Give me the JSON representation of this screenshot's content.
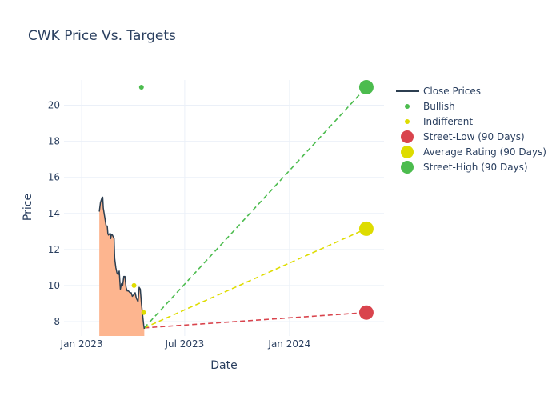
{
  "chart_data": {
    "type": "line",
    "title": "CWK Price Vs. Targets",
    "xlabel": "Date",
    "ylabel": "Price",
    "x_range": [
      "2022-12-01",
      "2024-06-15"
    ],
    "ylim": [
      7.2,
      21.4
    ],
    "x_ticks": [
      {
        "date": "2023-01-01",
        "label": "Jan 2023"
      },
      {
        "date": "2023-07-01",
        "label": "Jul 2023"
      },
      {
        "date": "2024-01-01",
        "label": "Jan 2024"
      }
    ],
    "y_ticks": [
      8,
      10,
      12,
      14,
      16,
      18,
      20
    ],
    "close_prices": [
      [
        "2023-02-01",
        14.1
      ],
      [
        "2023-02-03",
        14.6
      ],
      [
        "2023-02-06",
        14.9
      ],
      [
        "2023-02-07",
        14.9
      ],
      [
        "2023-02-08",
        14.3
      ],
      [
        "2023-02-10",
        13.9
      ],
      [
        "2023-02-13",
        13.3
      ],
      [
        "2023-02-15",
        13.3
      ],
      [
        "2023-02-16",
        12.9
      ],
      [
        "2023-02-17",
        12.8
      ],
      [
        "2023-02-20",
        12.9
      ],
      [
        "2023-02-21",
        12.6
      ],
      [
        "2023-02-22",
        12.8
      ],
      [
        "2023-02-24",
        12.8
      ],
      [
        "2023-02-27",
        12.6
      ],
      [
        "2023-02-28",
        11.5
      ],
      [
        "2023-03-02",
        11.0
      ],
      [
        "2023-03-04",
        10.7
      ],
      [
        "2023-03-06",
        10.6
      ],
      [
        "2023-03-08",
        10.8
      ],
      [
        "2023-03-10",
        9.8
      ],
      [
        "2023-03-12",
        10.1
      ],
      [
        "2023-03-14",
        10.0
      ],
      [
        "2023-03-16",
        10.5
      ],
      [
        "2023-03-18",
        10.5
      ],
      [
        "2023-03-20",
        9.9
      ],
      [
        "2023-03-22",
        9.7
      ],
      [
        "2023-03-24",
        9.7
      ],
      [
        "2023-03-27",
        9.6
      ],
      [
        "2023-03-29",
        9.6
      ],
      [
        "2023-03-31",
        9.4
      ],
      [
        "2023-04-03",
        9.5
      ],
      [
        "2023-04-05",
        9.6
      ],
      [
        "2023-04-07",
        9.3
      ],
      [
        "2023-04-10",
        9.1
      ],
      [
        "2023-04-12",
        9.9
      ],
      [
        "2023-04-14",
        9.8
      ],
      [
        "2023-04-16",
        9.0
      ],
      [
        "2023-04-18",
        8.4
      ],
      [
        "2023-04-20",
        7.8
      ],
      [
        "2023-04-21",
        7.6
      ]
    ],
    "bullish": [
      [
        "2023-04-16",
        21.0
      ]
    ],
    "indifferent": [
      [
        "2023-04-03",
        10.0
      ],
      [
        "2023-04-20",
        8.5
      ]
    ],
    "targets": {
      "start": [
        "2023-04-21",
        7.65
      ],
      "end_date": "2024-05-15",
      "street_low": 8.5,
      "average": 13.15,
      "street_high": 21.0
    },
    "colors": {
      "close": "#2c3e50",
      "fill": "#fdb58f",
      "bullish": "#4cbc4e",
      "indifferent": "#dedc00",
      "low": "#d9444d",
      "average": "#dedc00",
      "high": "#4cbc4e"
    },
    "legend": {
      "position": "right",
      "items": [
        {
          "label": "Close Prices",
          "marker": "line",
          "color": "#2c3e50"
        },
        {
          "label": "Bullish",
          "marker": "dot",
          "color": "#4cbc4e"
        },
        {
          "label": "Indifferent",
          "marker": "dot",
          "color": "#dedc00"
        },
        {
          "label": "Street-Low (90 Days)",
          "marker": "circle",
          "color": "#d9444d"
        },
        {
          "label": "Average Rating (90 Days)",
          "marker": "circle",
          "color": "#dedc00"
        },
        {
          "label": "Street-High (90 Days)",
          "marker": "circle",
          "color": "#4cbc4e"
        }
      ]
    }
  }
}
